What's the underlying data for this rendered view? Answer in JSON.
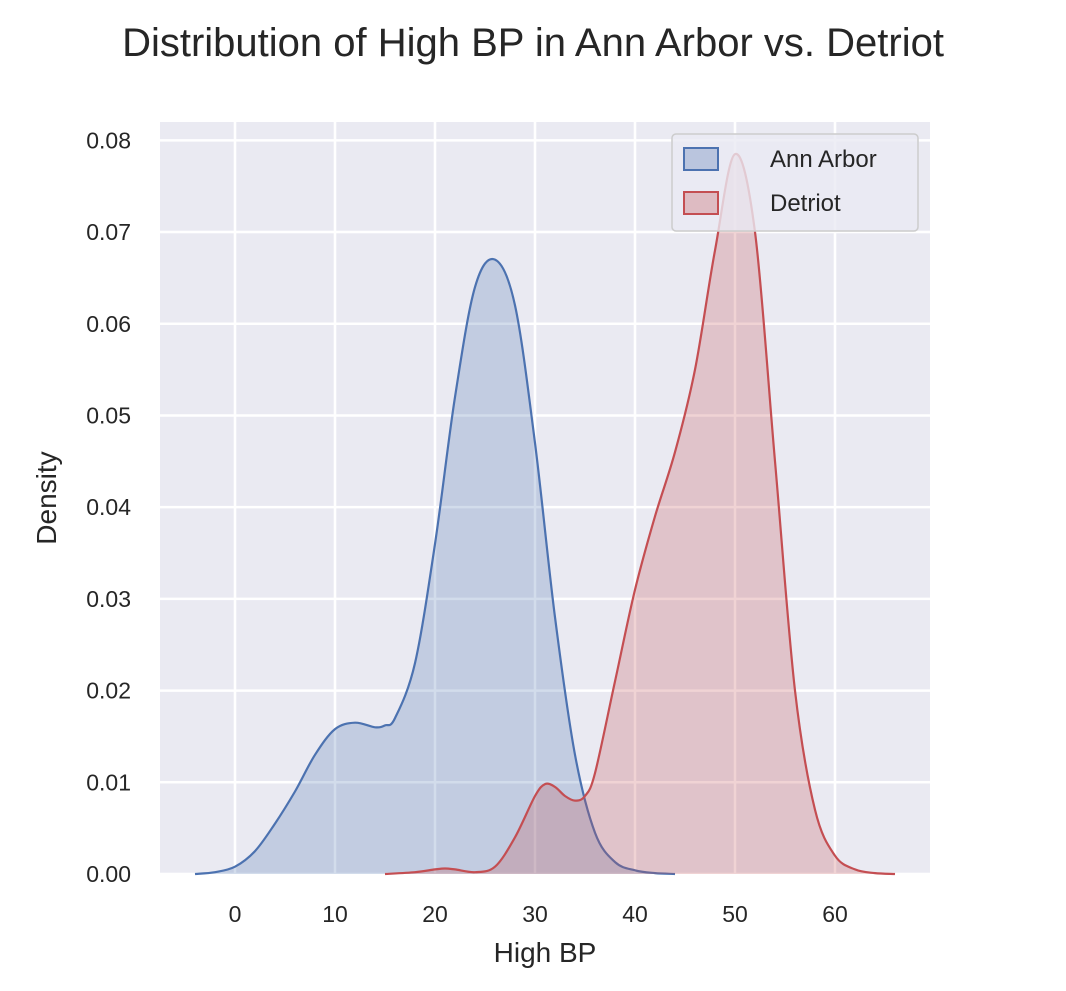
{
  "chart_data": {
    "type": "area",
    "title": "Distribution of High BP in Ann Arbor vs. Detriot",
    "xlabel": "High BP",
    "ylabel": "Density",
    "xlim": [
      -7.5,
      69.5
    ],
    "ylim": [
      0,
      0.082
    ],
    "xticks": [
      0,
      10,
      20,
      30,
      40,
      50,
      60
    ],
    "xtick_labels": [
      "0",
      "10",
      "20",
      "30",
      "40",
      "50",
      "60"
    ],
    "yticks": [
      0,
      0.01,
      0.02,
      0.03,
      0.04,
      0.05,
      0.06,
      0.07,
      0.08
    ],
    "ytick_labels": [
      "0.00",
      "0.01",
      "0.02",
      "0.03",
      "0.04",
      "0.05",
      "0.06",
      "0.07",
      "0.08"
    ],
    "grid": true,
    "legend_position": "top-right",
    "series": [
      {
        "name": "Ann Arbor",
        "color": "#4c72b0",
        "x": [
          -4,
          -2,
          0,
          2,
          4,
          6,
          8,
          10,
          12,
          14,
          15,
          16,
          18,
          20,
          22,
          24,
          26,
          28,
          30,
          32,
          34,
          36,
          38,
          40,
          42,
          44
        ],
        "y": [
          0,
          0.0002,
          0.0008,
          0.0025,
          0.0055,
          0.009,
          0.013,
          0.0158,
          0.0165,
          0.016,
          0.0162,
          0.017,
          0.023,
          0.036,
          0.052,
          0.064,
          0.067,
          0.062,
          0.047,
          0.028,
          0.013,
          0.0045,
          0.0013,
          0.0004,
          0.0001,
          0
        ]
      },
      {
        "name": "Detriot",
        "color": "#c44e52",
        "x": [
          15,
          18,
          20,
          21,
          22,
          24,
          26,
          28,
          30,
          31,
          32,
          33,
          34,
          35,
          36,
          38,
          40,
          42,
          44,
          46,
          48,
          50,
          52,
          54,
          56,
          58,
          60,
          62,
          64,
          66
        ],
        "y": [
          0,
          0.0002,
          0.0005,
          0.0006,
          0.0005,
          0.0002,
          0.0008,
          0.004,
          0.0085,
          0.0098,
          0.0095,
          0.0085,
          0.008,
          0.0085,
          0.011,
          0.021,
          0.031,
          0.039,
          0.046,
          0.055,
          0.068,
          0.0785,
          0.07,
          0.045,
          0.02,
          0.007,
          0.002,
          0.0005,
          0.0001,
          0
        ]
      }
    ]
  }
}
